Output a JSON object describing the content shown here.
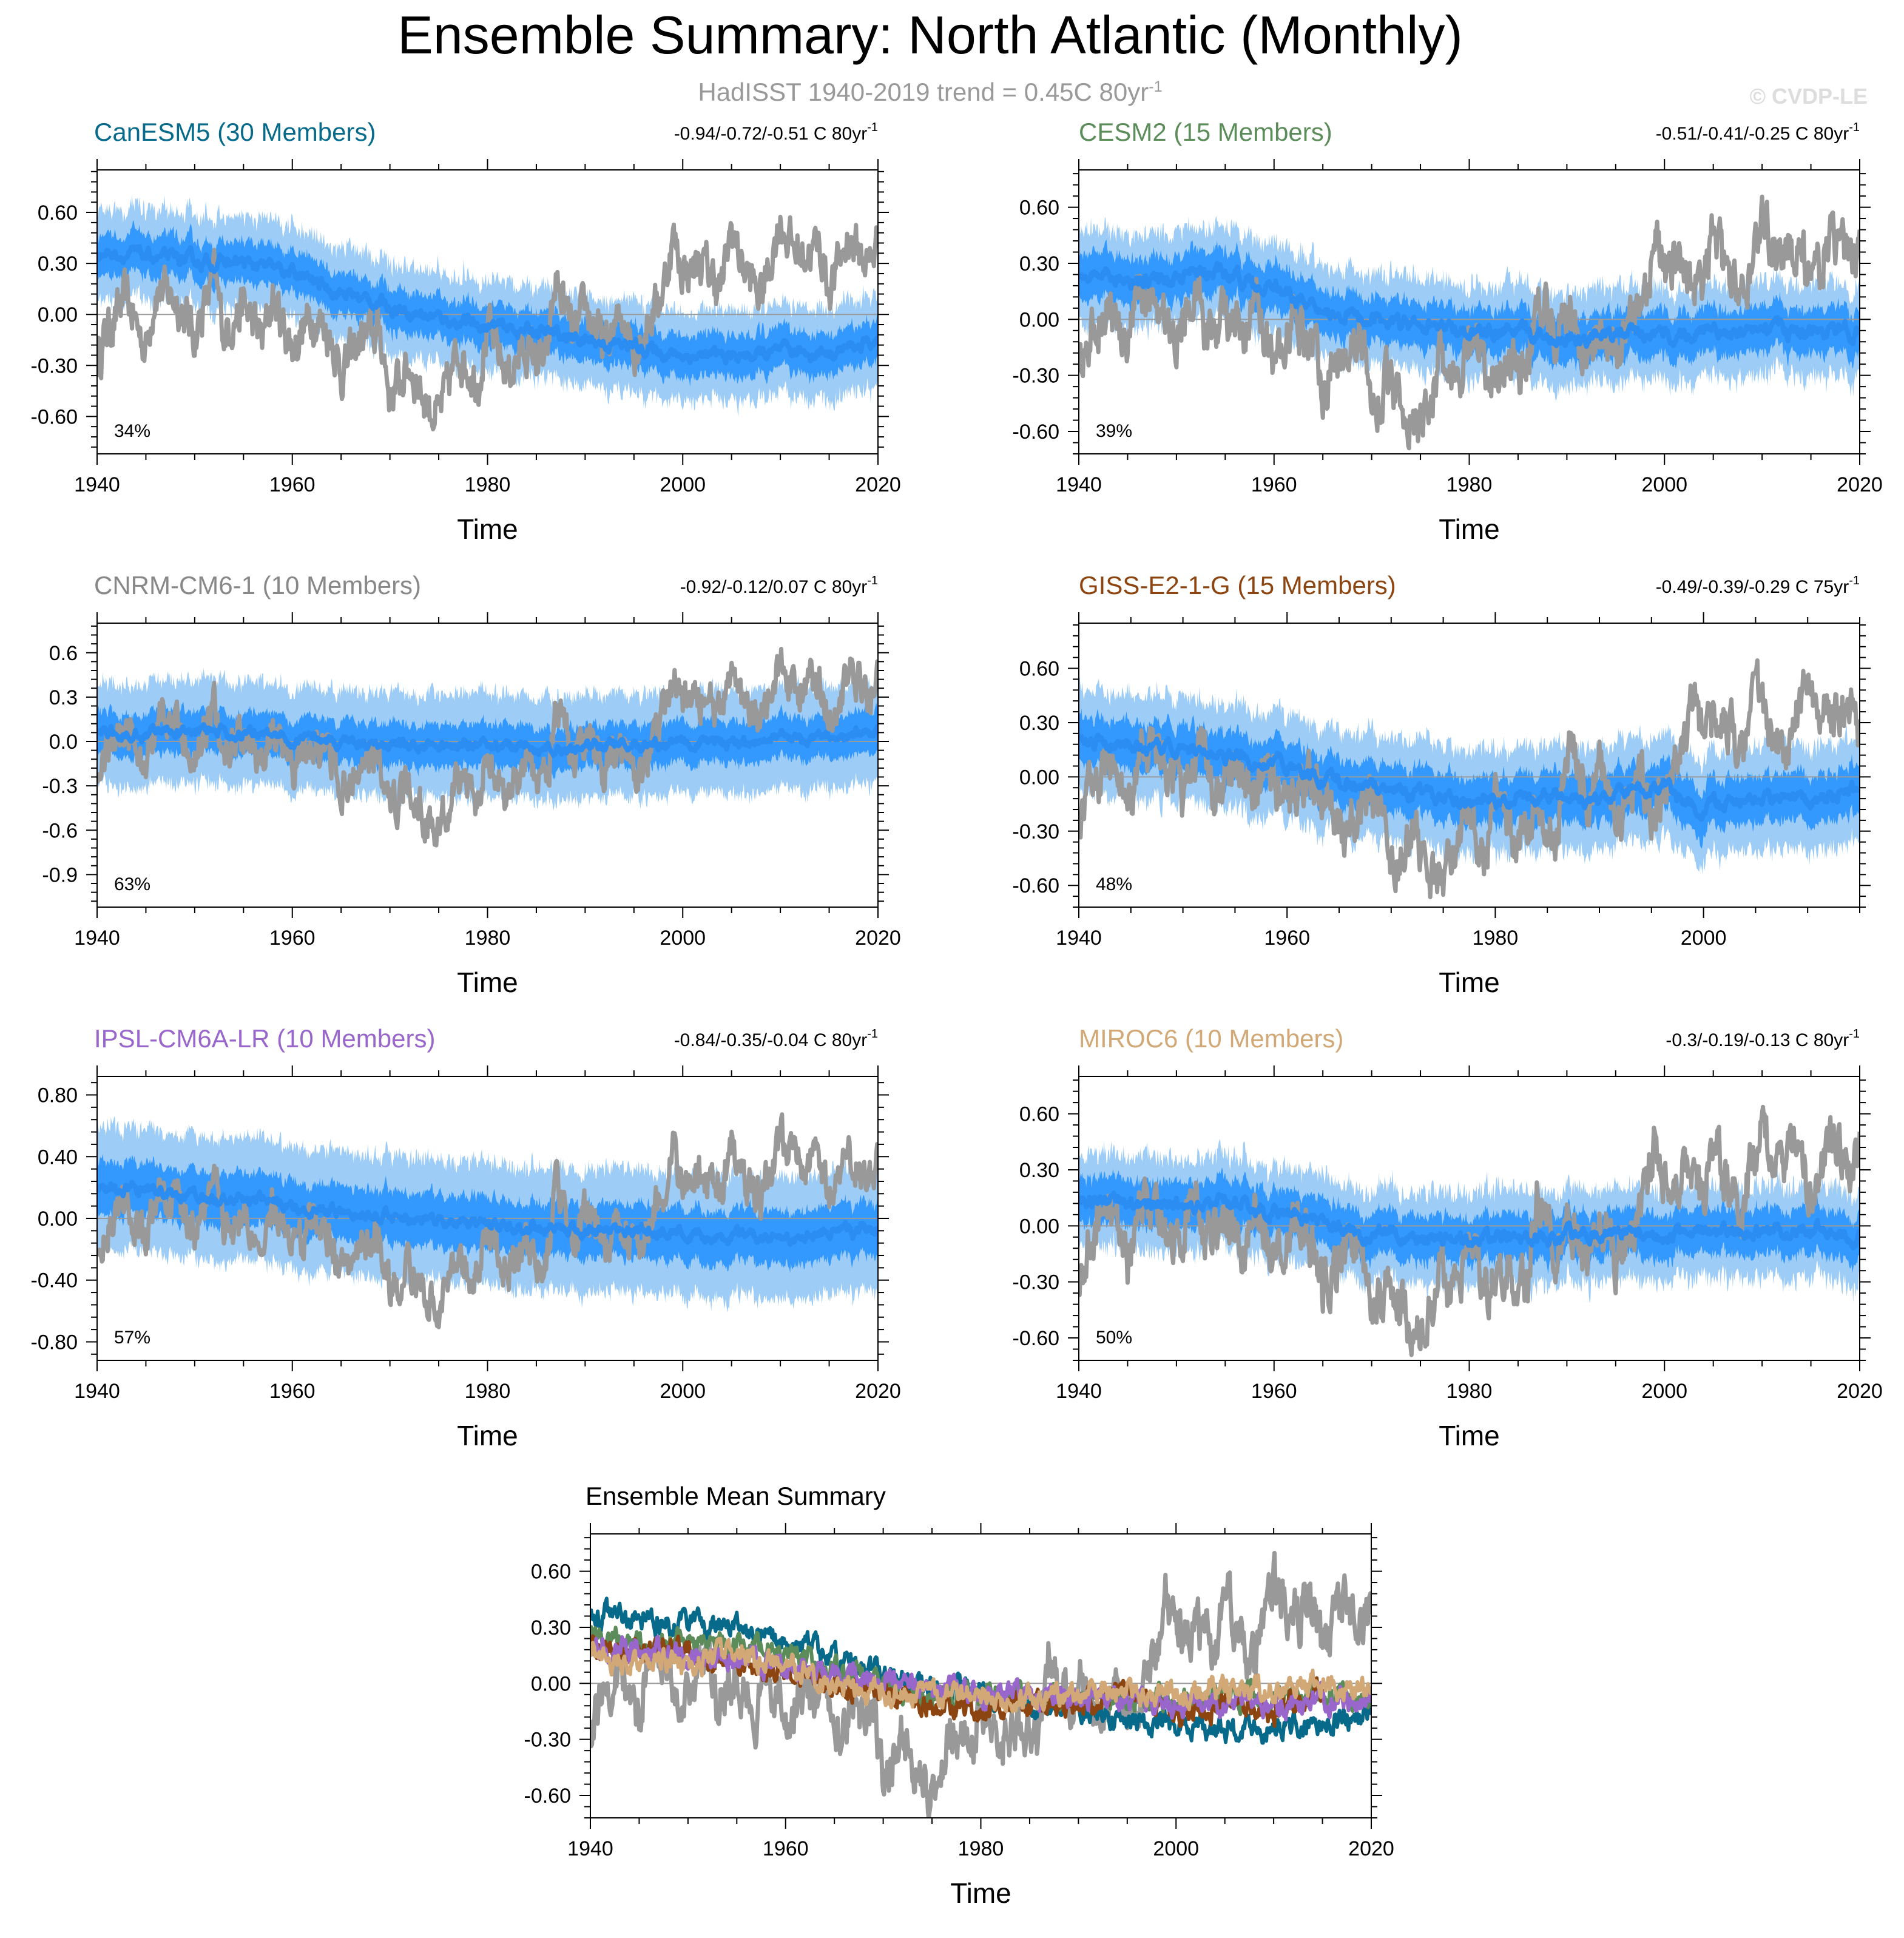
{
  "title": "Ensemble Summary: North Atlantic (Monthly)",
  "subtitle": {
    "text": "HadISST 1940-2019 trend = 0.45C 80yr",
    "superscript": "-1"
  },
  "watermark": "© CVDP-LE",
  "colors": {
    "observation": "#999999",
    "ensemble_dark": "#2b8cf2",
    "ensemble_mid": "#3399ff",
    "ensemble_light": "#9dccf6"
  },
  "chart_data": [
    {
      "type": "line",
      "title": "CanESM5 (30 Members)",
      "title_color": "#076a8a",
      "trend_text": "-0.94/-0.72/-0.51 C 80yr",
      "trend_sup": "-1",
      "pct_label": "34%",
      "xlabel": "Time",
      "ylabel": "",
      "xlim": [
        1940,
        2020
      ],
      "ylim": [
        -0.82,
        0.85
      ],
      "xticks": [
        1940,
        1960,
        1980,
        2000,
        2020
      ],
      "xtick_labels": [
        "1940",
        "1960",
        "1980",
        "2000",
        "2020"
      ],
      "yticks": [
        0.6,
        0.3,
        0.0,
        -0.3,
        -0.6
      ],
      "ytick_labels": [
        "0.60",
        "0.30",
        "0.00",
        "-0.30",
        "-0.60"
      ],
      "ensemble_mean": {
        "x": [
          1940,
          1945,
          1950,
          1955,
          1960,
          1965,
          1970,
          1975,
          1980,
          1985,
          1990,
          1995,
          2000,
          2005,
          2010,
          2015,
          2020
        ],
        "y": [
          0.37,
          0.34,
          0.31,
          0.3,
          0.24,
          0.13,
          0.05,
          -0.02,
          -0.07,
          -0.1,
          -0.15,
          -0.19,
          -0.24,
          -0.25,
          -0.23,
          -0.22,
          -0.16
        ]
      },
      "spread_inner": 0.1,
      "spread_outer": 0.22
    },
    {
      "type": "line",
      "title": "CESM2 (15 Members)",
      "title_color": "#5b8c5a",
      "trend_text": "-0.51/-0.41/-0.25 C 80yr",
      "trend_sup": "-1",
      "pct_label": "39%",
      "xlabel": "Time",
      "ylabel": "",
      "xlim": [
        1940,
        2020
      ],
      "ylim": [
        -0.72,
        0.8
      ],
      "xticks": [
        1940,
        1960,
        1980,
        2000,
        2020
      ],
      "xtick_labels": [
        "1940",
        "1960",
        "1980",
        "2000",
        "2020"
      ],
      "yticks": [
        0.6,
        0.3,
        0.0,
        -0.3,
        -0.6
      ],
      "ytick_labels": [
        "0.60",
        "0.30",
        "0.00",
        "-0.30",
        "-0.60"
      ],
      "ensemble_mean": {
        "x": [
          1940,
          1945,
          1950,
          1955,
          1960,
          1965,
          1970,
          1975,
          1980,
          1985,
          1990,
          1995,
          2000,
          2005,
          2010,
          2015,
          2020
        ],
        "y": [
          0.25,
          0.22,
          0.22,
          0.24,
          0.17,
          0.07,
          0.0,
          -0.05,
          -0.05,
          -0.07,
          -0.1,
          -0.08,
          -0.09,
          -0.07,
          -0.06,
          -0.07,
          -0.06
        ]
      },
      "spread_inner": 0.1,
      "spread_outer": 0.2
    },
    {
      "type": "line",
      "title": "CNRM-CM6-1 (10 Members)",
      "title_color": "#888888",
      "trend_text": "-0.92/-0.12/0.07 C 80yr",
      "trend_sup": "-1",
      "pct_label": "63%",
      "xlabel": "Time",
      "ylabel": "",
      "xlim": [
        1940,
        2020
      ],
      "ylim": [
        -1.12,
        0.8
      ],
      "xticks": [
        1940,
        1960,
        1980,
        2000,
        2020
      ],
      "xtick_labels": [
        "1940",
        "1960",
        "1980",
        "2000",
        "2020"
      ],
      "yticks": [
        0.6,
        0.3,
        0.0,
        -0.3,
        -0.6,
        -0.9
      ],
      "ytick_labels": [
        "0.6",
        "0.3",
        "0.0",
        "-0.3",
        "-0.6",
        "-0.9"
      ],
      "ensemble_mean": {
        "x": [
          1940,
          1945,
          1950,
          1955,
          1960,
          1965,
          1970,
          1975,
          1980,
          1985,
          1990,
          1995,
          2000,
          2005,
          2010,
          2015,
          2020
        ],
        "y": [
          0.05,
          0.06,
          0.08,
          0.05,
          0.03,
          0.0,
          -0.02,
          -0.03,
          -0.02,
          -0.04,
          -0.03,
          -0.02,
          -0.01,
          0.0,
          0.01,
          0.03,
          0.05
        ]
      },
      "spread_inner": 0.12,
      "spread_outer": 0.3
    },
    {
      "type": "line",
      "title": "GISS-E2-1-G (15 Members)",
      "title_color": "#8c4510",
      "trend_text": "-0.49/-0.39/-0.29 C 75yr",
      "trend_sup": "-1",
      "pct_label": "48%",
      "xlabel": "Time",
      "ylabel": "",
      "xlim": [
        1940,
        2015
      ],
      "ylim": [
        -0.72,
        0.85
      ],
      "xticks": [
        1940,
        1960,
        1980,
        2000
      ],
      "xtick_labels": [
        "1940",
        "1960",
        "1980",
        "2000"
      ],
      "yticks": [
        0.6,
        0.3,
        0.0,
        -0.3,
        -0.6
      ],
      "ytick_labels": [
        "0.60",
        "0.30",
        "0.00",
        "-0.30",
        "-0.60"
      ],
      "ensemble_mean": {
        "x": [
          1940,
          1945,
          1950,
          1955,
          1960,
          1965,
          1970,
          1975,
          1980,
          1985,
          1990,
          1995,
          2000,
          2005,
          2010,
          2015
        ],
        "y": [
          0.2,
          0.18,
          0.15,
          0.1,
          0.06,
          -0.02,
          -0.05,
          -0.12,
          -0.15,
          -0.1,
          -0.12,
          -0.05,
          -0.18,
          -0.1,
          -0.15,
          -0.05
        ]
      },
      "spread_inner": 0.11,
      "spread_outer": 0.24
    },
    {
      "type": "line",
      "title": "IPSL-CM6A-LR (10 Members)",
      "title_color": "#9966cc",
      "trend_text": "-0.84/-0.35/-0.04 C 80yr",
      "trend_sup": "-1",
      "pct_label": "57%",
      "xlabel": "Time",
      "ylabel": "",
      "xlim": [
        1940,
        2020
      ],
      "ylim": [
        -0.92,
        0.92
      ],
      "xticks": [
        1940,
        1960,
        1980,
        2000,
        2020
      ],
      "xtick_labels": [
        "1940",
        "1960",
        "1980",
        "2000",
        "2020"
      ],
      "yticks": [
        0.8,
        0.4,
        0.0,
        -0.4,
        -0.8
      ],
      "ytick_labels": [
        "0.80",
        "0.40",
        "0.00",
        "-0.40",
        "-0.80"
      ],
      "ensemble_mean": {
        "x": [
          1940,
          1945,
          1950,
          1955,
          1960,
          1965,
          1970,
          1975,
          1980,
          1985,
          1990,
          1995,
          2000,
          2005,
          2010,
          2015,
          2020
        ],
        "y": [
          0.2,
          0.18,
          0.15,
          0.12,
          0.08,
          0.04,
          0.02,
          -0.02,
          -0.05,
          -0.06,
          -0.07,
          -0.08,
          -0.1,
          -0.12,
          -0.13,
          -0.1,
          -0.08
        ]
      },
      "spread_inner": 0.15,
      "spread_outer": 0.35
    },
    {
      "type": "line",
      "title": "MIROC6 (10 Members)",
      "title_color": "#d2a877",
      "trend_text": "-0.3/-0.19/-0.13 C 80yr",
      "trend_sup": "-1",
      "pct_label": "50%",
      "xlabel": "Time",
      "ylabel": "",
      "xlim": [
        1940,
        2020
      ],
      "ylim": [
        -0.72,
        0.8
      ],
      "xticks": [
        1940,
        1960,
        1980,
        2000,
        2020
      ],
      "xtick_labels": [
        "1940",
        "1960",
        "1980",
        "2000",
        "2020"
      ],
      "yticks": [
        0.6,
        0.3,
        0.0,
        -0.3,
        -0.6
      ],
      "ytick_labels": [
        "0.60",
        "0.30",
        "0.00",
        "-0.30",
        "-0.60"
      ],
      "ensemble_mean": {
        "x": [
          1940,
          1945,
          1950,
          1955,
          1960,
          1965,
          1970,
          1975,
          1980,
          1985,
          1990,
          1995,
          2000,
          2005,
          2010,
          2015,
          2020
        ],
        "y": [
          0.15,
          0.12,
          0.1,
          0.15,
          0.08,
          0.0,
          -0.05,
          -0.05,
          -0.08,
          -0.07,
          -0.05,
          -0.04,
          -0.05,
          -0.03,
          -0.02,
          -0.02,
          -0.05
        ]
      },
      "spread_inner": 0.1,
      "spread_outer": 0.2
    },
    {
      "type": "line",
      "title": "Ensemble Mean Summary",
      "title_color": "#000000",
      "trend_text": "",
      "trend_sup": "",
      "pct_label": "",
      "xlabel": "Time",
      "ylabel": "",
      "xlim": [
        1940,
        2020
      ],
      "ylim": [
        -0.72,
        0.8
      ],
      "xticks": [
        1940,
        1960,
        1980,
        2000,
        2020
      ],
      "xtick_labels": [
        "1940",
        "1960",
        "1980",
        "2000",
        "2020"
      ],
      "yticks": [
        0.6,
        0.3,
        0.0,
        -0.3,
        -0.6
      ],
      "ytick_labels": [
        "0.60",
        "0.30",
        "0.00",
        "-0.30",
        "-0.60"
      ],
      "series": [
        {
          "name": "CanESM5",
          "color": "#076a8a",
          "x": [
            1940,
            1945,
            1950,
            1955,
            1960,
            1965,
            1970,
            1975,
            1980,
            1985,
            1990,
            1995,
            2000,
            2005,
            2010,
            2015,
            2020
          ],
          "y": [
            0.37,
            0.34,
            0.31,
            0.3,
            0.24,
            0.13,
            0.05,
            -0.02,
            -0.07,
            -0.1,
            -0.15,
            -0.19,
            -0.24,
            -0.25,
            -0.23,
            -0.22,
            -0.16
          ]
        },
        {
          "name": "CESM2",
          "color": "#5b8c5a",
          "x": [
            1940,
            1945,
            1950,
            1955,
            1960,
            1965,
            1970,
            1975,
            1980,
            1985,
            1990,
            1995,
            2000,
            2005,
            2010,
            2015,
            2020
          ],
          "y": [
            0.25,
            0.22,
            0.22,
            0.24,
            0.17,
            0.07,
            0.0,
            -0.05,
            -0.05,
            -0.07,
            -0.1,
            -0.08,
            -0.09,
            -0.07,
            -0.06,
            -0.07,
            -0.06
          ]
        },
        {
          "name": "GISS-E2-1-G",
          "color": "#8c4510",
          "x": [
            1940,
            1945,
            1950,
            1955,
            1960,
            1965,
            1970,
            1975,
            1980,
            1985,
            1990,
            1995,
            2000,
            2005,
            2010,
            2015
          ],
          "y": [
            0.2,
            0.18,
            0.15,
            0.1,
            0.06,
            -0.02,
            -0.05,
            -0.12,
            -0.15,
            -0.1,
            -0.12,
            -0.05,
            -0.18,
            -0.1,
            -0.15,
            -0.05
          ]
        },
        {
          "name": "IPSL-CM6A-LR",
          "color": "#9966cc",
          "x": [
            1940,
            1945,
            1950,
            1955,
            1960,
            1965,
            1970,
            1975,
            1980,
            1985,
            1990,
            1995,
            2000,
            2005,
            2010,
            2015,
            2020
          ],
          "y": [
            0.2,
            0.18,
            0.15,
            0.12,
            0.08,
            0.04,
            0.02,
            -0.02,
            -0.05,
            -0.06,
            -0.07,
            -0.08,
            -0.1,
            -0.12,
            -0.13,
            -0.1,
            -0.08
          ]
        },
        {
          "name": "MIROC6",
          "color": "#d2a877",
          "x": [
            1940,
            1945,
            1950,
            1955,
            1960,
            1965,
            1970,
            1975,
            1980,
            1985,
            1990,
            1995,
            2000,
            2005,
            2010,
            2015,
            2020
          ],
          "y": [
            0.15,
            0.12,
            0.1,
            0.15,
            0.08,
            0.0,
            -0.05,
            -0.05,
            -0.08,
            -0.07,
            -0.05,
            -0.04,
            -0.05,
            -0.03,
            -0.02,
            -0.02,
            -0.05
          ]
        }
      ]
    }
  ],
  "observation": {
    "name": "HadISST",
    "x": [
      1940,
      1941,
      1943,
      1945,
      1946,
      1948,
      1950,
      1952,
      1953,
      1955,
      1957,
      1958,
      1960,
      1962,
      1964,
      1965,
      1967,
      1969,
      1970,
      1972,
      1974,
      1975,
      1977,
      1979,
      1980,
      1982,
      1984,
      1986,
      1987,
      1989,
      1990,
      1992,
      1994,
      1995,
      1996,
      1998,
      1999,
      2000,
      2002,
      2004,
      2005,
      2006,
      2008,
      2010,
      2011,
      2012,
      2014,
      2015,
      2017,
      2019,
      2020
    ],
    "y": [
      -0.28,
      -0.1,
      0.1,
      -0.2,
      0.15,
      0.1,
      -0.12,
      0.22,
      -0.1,
      0.05,
      -0.15,
      0.1,
      -0.2,
      0.0,
      -0.12,
      -0.35,
      -0.15,
      -0.1,
      -0.48,
      -0.3,
      -0.55,
      -0.6,
      -0.22,
      -0.4,
      -0.08,
      -0.35,
      -0.2,
      -0.3,
      0.2,
      -0.15,
      0.05,
      -0.2,
      0.0,
      -0.2,
      -0.1,
      0.15,
      0.45,
      0.25,
      0.3,
      0.15,
      0.52,
      0.3,
      0.1,
      0.55,
      0.42,
      0.35,
      0.4,
      0.15,
      0.45,
      0.3,
      0.42
    ]
  }
}
